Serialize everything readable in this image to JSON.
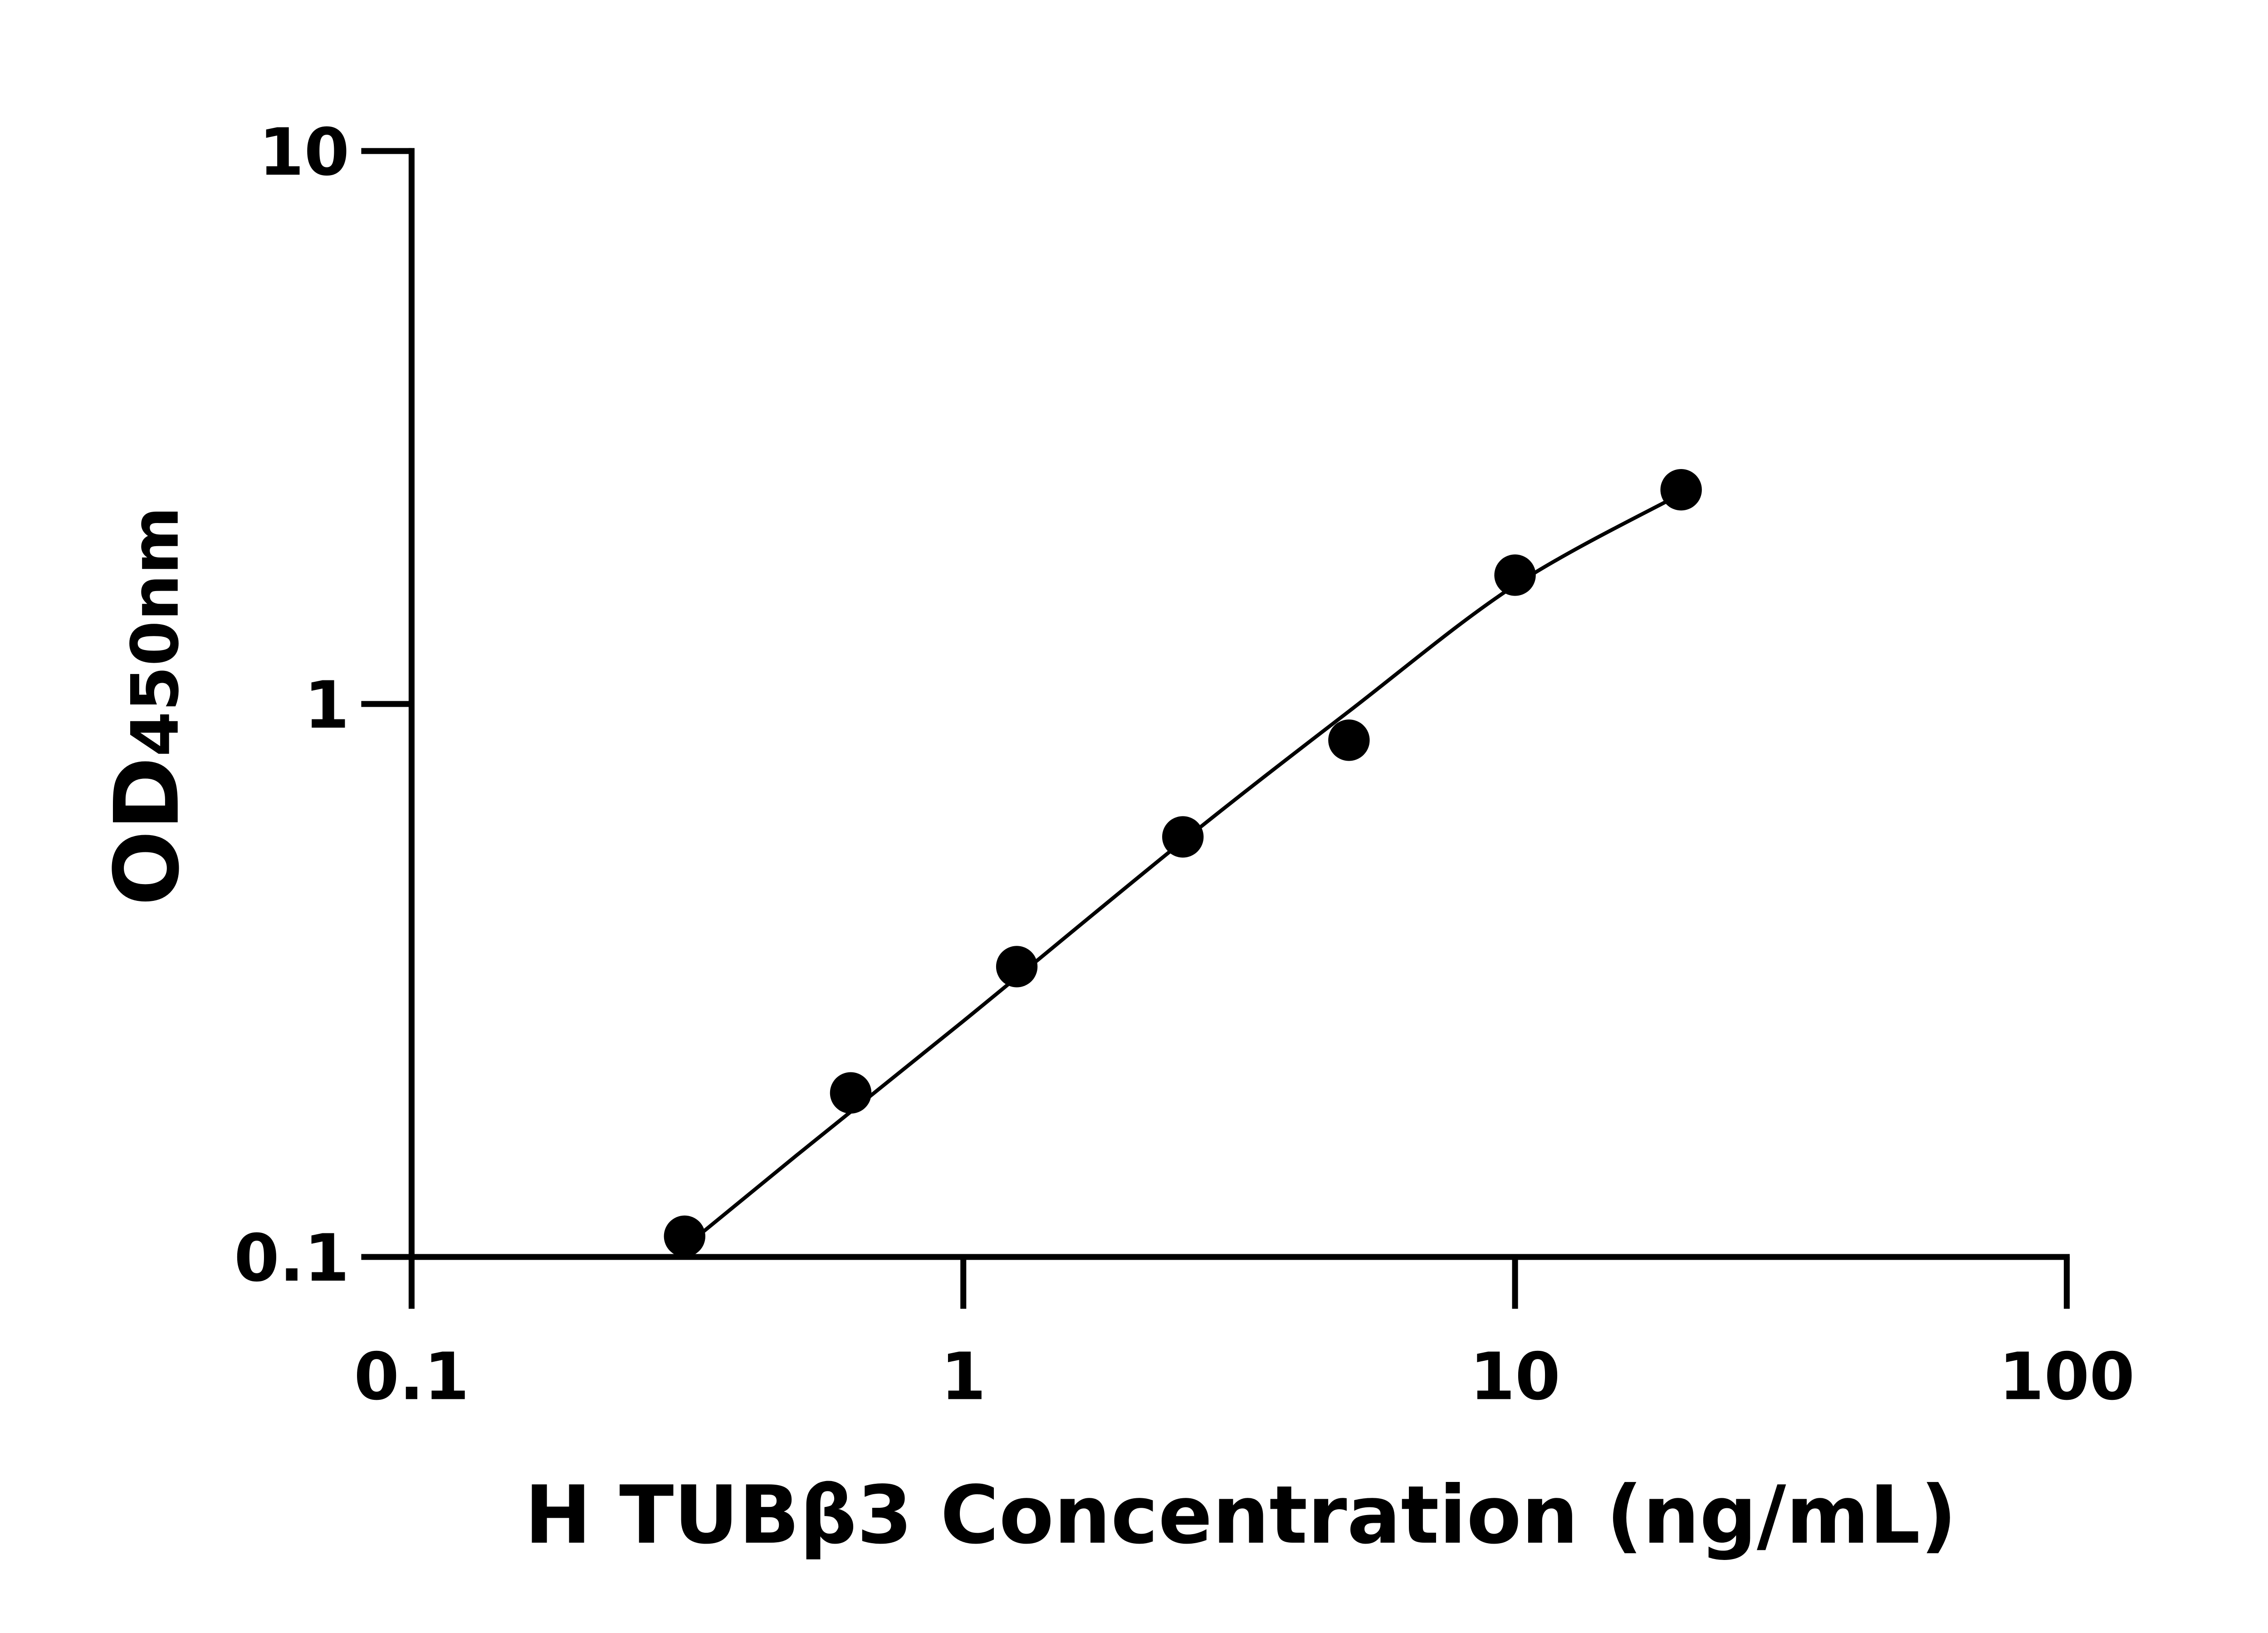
{
  "chart_data": {
    "type": "scatter",
    "title": "",
    "xlabel": "H TUBβ3 Concentration (ng/mL)",
    "ylabel_main": "OD",
    "ylabel_sub": "450nm",
    "x_scale": "log",
    "y_scale": "log",
    "xlim": [
      0.1,
      100
    ],
    "ylim": [
      0.1,
      10
    ],
    "x_ticks": [
      "0.1",
      "1",
      "10",
      "100"
    ],
    "x_tick_values": [
      0.1,
      1,
      10,
      100
    ],
    "y_ticks": [
      "0.1",
      "1",
      "10"
    ],
    "y_tick_values": [
      0.1,
      1,
      10
    ],
    "grid": false,
    "points": {
      "x": [
        0.3125,
        0.625,
        1.25,
        2.5,
        5,
        10,
        20
      ],
      "y": [
        0.109,
        0.198,
        0.335,
        0.575,
        0.86,
        1.71,
        2.44
      ]
    },
    "fit_curve": {
      "x": [
        0.33,
        0.5,
        1,
        2.5,
        5,
        10,
        20
      ],
      "y": [
        0.109,
        0.153,
        0.267,
        0.565,
        0.97,
        1.64,
        2.4
      ]
    },
    "colors": {
      "points": "#000000",
      "line": "#000000"
    }
  }
}
